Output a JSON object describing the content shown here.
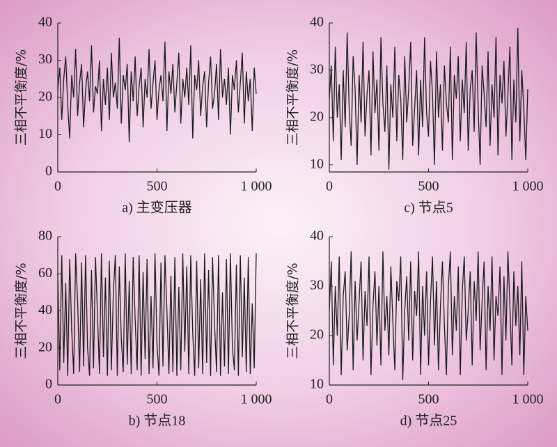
{
  "chart_data": [
    {
      "type": "line",
      "title": "a) 主变压器",
      "y_label": "三相不平衡度/%",
      "color": "#1a1a1a",
      "x": [
        0,
        10,
        20,
        30,
        40,
        50,
        60,
        70,
        80,
        90,
        100,
        110,
        120,
        130,
        140,
        150,
        160,
        170,
        180,
        190,
        200,
        210,
        220,
        230,
        240,
        250,
        260,
        270,
        280,
        290,
        300,
        310,
        320,
        330,
        340,
        350,
        360,
        370,
        380,
        390,
        400,
        410,
        420,
        430,
        440,
        450,
        460,
        470,
        480,
        490,
        500,
        510,
        520,
        530,
        540,
        550,
        560,
        570,
        580,
        590,
        600,
        610,
        620,
        630,
        640,
        650,
        660,
        670,
        680,
        690,
        700,
        710,
        720,
        730,
        740,
        750,
        760,
        770,
        780,
        790,
        800,
        810,
        820,
        830,
        840,
        850,
        860,
        870,
        880,
        890,
        900,
        910,
        920,
        930,
        940,
        950,
        960,
        970,
        980,
        990,
        1000
      ],
      "values": [
        22,
        28,
        14,
        25,
        31,
        18,
        9,
        26,
        20,
        33,
        15,
        24,
        29,
        12,
        22,
        27,
        19,
        34,
        16,
        23,
        21,
        30,
        11,
        25,
        18,
        28,
        14,
        32,
        20,
        24,
        17,
        36,
        13,
        26,
        22,
        29,
        8,
        27,
        19,
        31,
        15,
        23,
        28,
        12,
        25,
        20,
        33,
        17,
        24,
        30,
        14,
        22,
        26,
        19,
        35,
        11,
        27,
        21,
        29,
        16,
        24,
        32,
        13,
        25,
        20,
        28,
        18,
        34,
        9,
        26,
        22,
        30,
        15,
        23,
        27,
        12,
        24,
        31,
        17,
        21,
        29,
        14,
        33,
        20,
        25,
        18,
        28,
        10,
        26,
        22,
        30,
        16,
        24,
        32,
        13,
        27,
        19,
        25,
        11,
        28,
        21
      ],
      "xlim": [
        0,
        1000
      ],
      "xticks": [
        0,
        500,
        {
          "value": 1000,
          "label": "1 000"
        }
      ],
      "ylim": [
        0,
        40
      ],
      "yticks": [
        0,
        10,
        20,
        30,
        40
      ]
    },
    {
      "type": "line",
      "title": "b) 节点18",
      "y_label": "三相不平衡度/%",
      "color": "#1a1a1a",
      "x": [
        0,
        10,
        20,
        30,
        40,
        50,
        60,
        70,
        80,
        90,
        100,
        110,
        120,
        130,
        140,
        150,
        160,
        170,
        180,
        190,
        200,
        210,
        220,
        230,
        240,
        250,
        260,
        270,
        280,
        290,
        300,
        310,
        320,
        330,
        340,
        350,
        360,
        370,
        380,
        390,
        400,
        410,
        420,
        430,
        440,
        450,
        460,
        470,
        480,
        490,
        500,
        510,
        520,
        530,
        540,
        550,
        560,
        570,
        580,
        590,
        600,
        610,
        620,
        630,
        640,
        650,
        660,
        670,
        680,
        690,
        700,
        710,
        720,
        730,
        740,
        750,
        760,
        770,
        780,
        790,
        800,
        810,
        820,
        830,
        840,
        850,
        860,
        870,
        880,
        890,
        900,
        910,
        920,
        930,
        940,
        950,
        960,
        970,
        980,
        990,
        1000
      ],
      "values": [
        60,
        8,
        70,
        12,
        55,
        5,
        68,
        30,
        6,
        71,
        45,
        7,
        66,
        10,
        70,
        20,
        5,
        62,
        9,
        69,
        38,
        6,
        71,
        15,
        58,
        5,
        67,
        8,
        50,
        70,
        5,
        64,
        25,
        7,
        71,
        11,
        56,
        6,
        69,
        35,
        8,
        70,
        5,
        61,
        14,
        68,
        6,
        48,
        9,
        71,
        22,
        5,
        66,
        10,
        70,
        40,
        6,
        59,
        7,
        69,
        5,
        53,
        8,
        71,
        18,
        64,
        6,
        70,
        28,
        5,
        67,
        9,
        57,
        6,
        71,
        12,
        62,
        5,
        69,
        33,
        7,
        70,
        5,
        50,
        10,
        68,
        6,
        71,
        20,
        8,
        65,
        5,
        70,
        15,
        58,
        7,
        69,
        6,
        44,
        9,
        71
      ],
      "xlim": [
        0,
        1000
      ],
      "xticks": [
        0,
        500,
        {
          "value": 1000,
          "label": "1 000"
        }
      ],
      "ylim": [
        0,
        80
      ],
      "yticks": [
        0,
        20,
        40,
        60,
        80
      ]
    },
    {
      "type": "line",
      "title": "c) 节点5",
      "y_label": "三相不平衡度/%",
      "color": "#1a1a1a",
      "x": [
        0,
        10,
        20,
        30,
        40,
        50,
        60,
        70,
        80,
        90,
        100,
        110,
        120,
        130,
        140,
        150,
        160,
        170,
        180,
        190,
        200,
        210,
        220,
        230,
        240,
        250,
        260,
        270,
        280,
        290,
        300,
        310,
        320,
        330,
        340,
        350,
        360,
        370,
        380,
        390,
        400,
        410,
        420,
        430,
        440,
        450,
        460,
        470,
        480,
        490,
        500,
        510,
        520,
        530,
        540,
        550,
        560,
        570,
        580,
        590,
        600,
        610,
        620,
        630,
        640,
        650,
        660,
        670,
        680,
        690,
        700,
        710,
        720,
        730,
        740,
        750,
        760,
        770,
        780,
        790,
        800,
        810,
        820,
        830,
        840,
        850,
        860,
        870,
        880,
        890,
        900,
        910,
        920,
        930,
        940,
        950,
        960,
        970,
        980,
        990,
        1000
      ],
      "values": [
        24,
        31,
        15,
        35,
        20,
        27,
        11,
        30,
        18,
        38,
        22,
        14,
        33,
        26,
        10,
        29,
        19,
        36,
        16,
        25,
        30,
        12,
        34,
        21,
        28,
        13,
        37,
        23,
        17,
        31,
        9,
        27,
        20,
        35,
        15,
        29,
        24,
        11,
        33,
        19,
        26,
        36,
        14,
        22,
        30,
        12,
        28,
        18,
        37,
        21,
        16,
        32,
        25,
        10,
        34,
        20,
        27,
        13,
        31,
        23,
        19,
        35,
        11,
        29,
        24,
        33,
        15,
        28,
        21,
        36,
        13,
        26,
        30,
        17,
        38,
        22,
        10,
        31,
        25,
        18,
        34,
        14,
        27,
        20,
        37,
        12,
        29,
        23,
        32,
        16,
        25,
        35,
        11,
        28,
        19,
        39,
        15,
        30,
        22,
        11,
        26
      ],
      "xlim": [
        0,
        1000
      ],
      "xticks": [
        0,
        500,
        {
          "value": 1000,
          "label": "1 000"
        }
      ],
      "ylim": [
        8.5,
        40
      ],
      "yticks": [
        10,
        20,
        30,
        40
      ]
    },
    {
      "type": "line",
      "title": "d) 节点25",
      "y_label": "三相不平衡度/%",
      "color": "#1a1a1a",
      "x": [
        0,
        10,
        20,
        30,
        40,
        50,
        60,
        70,
        80,
        90,
        100,
        110,
        120,
        130,
        140,
        150,
        160,
        170,
        180,
        190,
        200,
        210,
        220,
        230,
        240,
        250,
        260,
        270,
        280,
        290,
        300,
        310,
        320,
        330,
        340,
        350,
        360,
        370,
        380,
        390,
        400,
        410,
        420,
        430,
        440,
        450,
        460,
        470,
        480,
        490,
        500,
        510,
        520,
        530,
        540,
        550,
        560,
        570,
        580,
        590,
        600,
        610,
        620,
        630,
        640,
        650,
        660,
        670,
        680,
        690,
        700,
        710,
        720,
        730,
        740,
        750,
        760,
        770,
        780,
        790,
        800,
        810,
        820,
        830,
        840,
        850,
        860,
        870,
        880,
        890,
        900,
        910,
        920,
        930,
        940,
        950,
        960,
        970,
        980,
        990,
        1000
      ],
      "values": [
        25,
        35,
        14,
        30,
        20,
        36,
        12,
        28,
        33,
        17,
        24,
        37,
        13,
        31,
        19,
        27,
        35,
        15,
        29,
        22,
        36,
        12,
        26,
        33,
        18,
        30,
        14,
        37,
        21,
        28,
        16,
        34,
        23,
        13,
        31,
        27,
        36,
        11,
        25,
        32,
        19,
        35,
        15,
        29,
        24,
        37,
        12,
        30,
        20,
        33,
        14,
        27,
        36,
        18,
        31,
        13,
        26,
        35,
        22,
        12,
        30,
        37,
        16,
        28,
        21,
        34,
        12,
        29,
        36,
        19,
        25,
        33,
        14,
        31,
        23,
        37,
        17,
        27,
        35,
        13,
        30,
        21,
        36,
        15,
        28,
        24,
        34,
        12,
        32,
        19,
        37,
        26,
        14,
        33,
        22,
        30,
        16,
        35,
        12,
        28,
        21
      ],
      "xlim": [
        0,
        1000
      ],
      "xticks": [
        0,
        500,
        {
          "value": 1000,
          "label": "1 000"
        }
      ],
      "ylim": [
        10,
        40
      ],
      "yticks": [
        10,
        20,
        30,
        40
      ]
    }
  ]
}
